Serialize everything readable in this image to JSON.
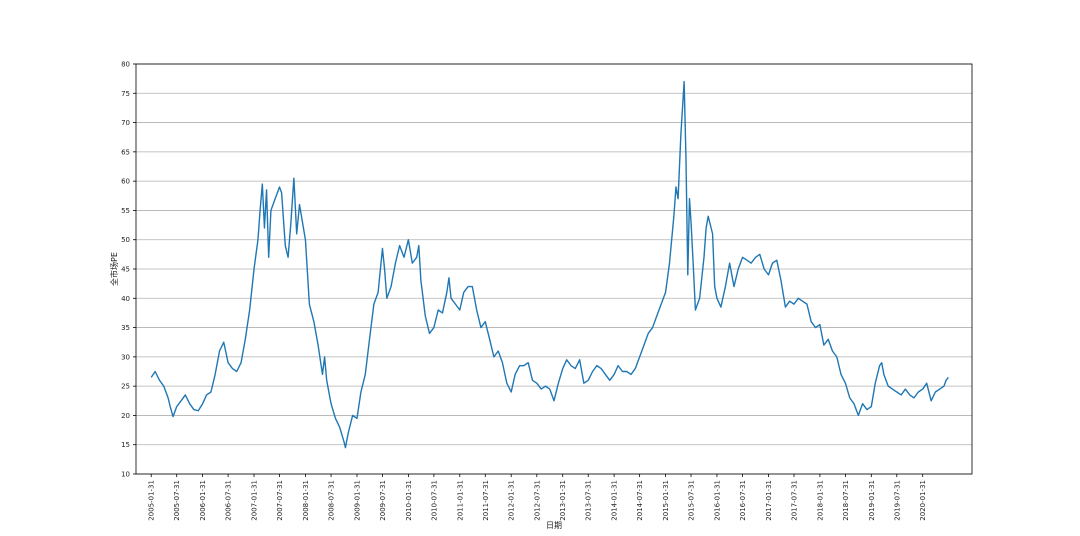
{
  "chart_data": {
    "type": "line",
    "title": "",
    "xlabel": "日期",
    "ylabel": "全市场PE",
    "ylim": [
      10,
      80
    ],
    "xlim": [
      "2004-10-15",
      "2021-01-15"
    ],
    "yticks": [
      10,
      15,
      20,
      25,
      30,
      35,
      40,
      45,
      50,
      55,
      60,
      65,
      70,
      75,
      80
    ],
    "xticks": [
      "2005-01-31",
      "2005-07-31",
      "2006-01-31",
      "2006-07-31",
      "2007-01-31",
      "2007-07-31",
      "2008-01-31",
      "2008-07-31",
      "2009-01-31",
      "2009-07-31",
      "2010-01-31",
      "2010-07-31",
      "2011-01-31",
      "2011-07-31",
      "2012-01-31",
      "2012-07-31",
      "2013-01-31",
      "2013-07-31",
      "2014-01-31",
      "2014-07-31",
      "2015-01-31",
      "2015-07-31",
      "2016-01-31",
      "2016-07-31",
      "2017-01-31",
      "2017-07-31",
      "2018-01-31",
      "2018-07-31",
      "2019-01-31",
      "2019-07-31",
      "2020-01-31"
    ],
    "grid": "horizontal",
    "line_color": "#1f77b4",
    "series": [
      {
        "points": [
          [
            "2005-01-31",
            26.5
          ],
          [
            "2005-02-28",
            27.5
          ],
          [
            "2005-03-31",
            26.0
          ],
          [
            "2005-04-30",
            25.0
          ],
          [
            "2005-05-31",
            23.0
          ],
          [
            "2005-06-15",
            21.5
          ],
          [
            "2005-07-05",
            19.8
          ],
          [
            "2005-07-31",
            21.5
          ],
          [
            "2005-08-31",
            22.5
          ],
          [
            "2005-09-30",
            23.5
          ],
          [
            "2005-10-31",
            22.0
          ],
          [
            "2005-11-30",
            21.0
          ],
          [
            "2005-12-31",
            20.8
          ],
          [
            "2006-01-31",
            22.0
          ],
          [
            "2006-02-28",
            23.5
          ],
          [
            "2006-03-31",
            24.0
          ],
          [
            "2006-04-30",
            27.0
          ],
          [
            "2006-05-31",
            31.0
          ],
          [
            "2006-06-30",
            32.5
          ],
          [
            "2006-07-31",
            29.0
          ],
          [
            "2006-08-31",
            28.0
          ],
          [
            "2006-09-30",
            27.5
          ],
          [
            "2006-10-31",
            29.0
          ],
          [
            "2006-11-30",
            33.0
          ],
          [
            "2006-12-31",
            38.0
          ],
          [
            "2007-01-31",
            45.0
          ],
          [
            "2007-02-28",
            50.0
          ],
          [
            "2007-03-15",
            55.0
          ],
          [
            "2007-03-31",
            59.5
          ],
          [
            "2007-04-15",
            52.0
          ],
          [
            "2007-04-30",
            58.5
          ],
          [
            "2007-05-15",
            47.0
          ],
          [
            "2007-05-31",
            55.0
          ],
          [
            "2007-06-30",
            57.0
          ],
          [
            "2007-07-31",
            59.0
          ],
          [
            "2007-08-15",
            58.0
          ],
          [
            "2007-09-10",
            49.0
          ],
          [
            "2007-09-30",
            47.0
          ],
          [
            "2007-10-20",
            53.0
          ],
          [
            "2007-11-10",
            60.5
          ],
          [
            "2007-11-30",
            51.0
          ],
          [
            "2007-12-20",
            56.0
          ],
          [
            "2008-01-31",
            50.0
          ],
          [
            "2008-02-28",
            39.0
          ],
          [
            "2008-03-31",
            36.0
          ],
          [
            "2008-04-30",
            32.0
          ],
          [
            "2008-05-31",
            27.0
          ],
          [
            "2008-06-15",
            30.0
          ],
          [
            "2008-06-30",
            26.0
          ],
          [
            "2008-07-31",
            22.0
          ],
          [
            "2008-08-31",
            19.5
          ],
          [
            "2008-09-30",
            18.0
          ],
          [
            "2008-10-31",
            15.5
          ],
          [
            "2008-11-10",
            14.5
          ],
          [
            "2008-11-30",
            17.0
          ],
          [
            "2008-12-31",
            20.0
          ],
          [
            "2009-01-31",
            19.5
          ],
          [
            "2009-02-28",
            24.0
          ],
          [
            "2009-03-31",
            27.0
          ],
          [
            "2009-04-30",
            33.0
          ],
          [
            "2009-05-31",
            39.0
          ],
          [
            "2009-06-30",
            41.0
          ],
          [
            "2009-07-31",
            48.5
          ],
          [
            "2009-08-15",
            45.0
          ],
          [
            "2009-08-31",
            40.0
          ],
          [
            "2009-09-30",
            42.0
          ],
          [
            "2009-10-31",
            46.0
          ],
          [
            "2009-11-30",
            49.0
          ],
          [
            "2009-12-31",
            47.0
          ],
          [
            "2010-01-31",
            50.0
          ],
          [
            "2010-02-28",
            46.0
          ],
          [
            "2010-03-31",
            47.0
          ],
          [
            "2010-04-15",
            49.0
          ],
          [
            "2010-04-30",
            43.0
          ],
          [
            "2010-05-31",
            37.0
          ],
          [
            "2010-06-30",
            34.0
          ],
          [
            "2010-07-31",
            35.0
          ],
          [
            "2010-08-31",
            38.0
          ],
          [
            "2010-09-30",
            37.5
          ],
          [
            "2010-10-31",
            41.0
          ],
          [
            "2010-11-15",
            43.5
          ],
          [
            "2010-11-30",
            40.0
          ],
          [
            "2010-12-31",
            39.0
          ],
          [
            "2011-01-31",
            38.0
          ],
          [
            "2011-02-28",
            41.0
          ],
          [
            "2011-03-31",
            42.0
          ],
          [
            "2011-04-30",
            42.0
          ],
          [
            "2011-05-31",
            38.0
          ],
          [
            "2011-06-30",
            35.0
          ],
          [
            "2011-07-31",
            36.0
          ],
          [
            "2011-08-31",
            33.0
          ],
          [
            "2011-09-30",
            30.0
          ],
          [
            "2011-10-31",
            31.0
          ],
          [
            "2011-11-30",
            29.0
          ],
          [
            "2011-12-31",
            25.5
          ],
          [
            "2012-01-31",
            24.0
          ],
          [
            "2012-02-28",
            27.0
          ],
          [
            "2012-03-31",
            28.5
          ],
          [
            "2012-04-30",
            28.5
          ],
          [
            "2012-05-31",
            29.0
          ],
          [
            "2012-06-30",
            26.0
          ],
          [
            "2012-07-31",
            25.5
          ],
          [
            "2012-08-31",
            24.5
          ],
          [
            "2012-09-30",
            25.0
          ],
          [
            "2012-10-31",
            24.5
          ],
          [
            "2012-11-30",
            22.5
          ],
          [
            "2012-12-31",
            25.5
          ],
          [
            "2013-01-31",
            28.0
          ],
          [
            "2013-02-28",
            29.5
          ],
          [
            "2013-03-31",
            28.5
          ],
          [
            "2013-04-30",
            28.0
          ],
          [
            "2013-05-31",
            29.5
          ],
          [
            "2013-06-30",
            25.5
          ],
          [
            "2013-07-31",
            26.0
          ],
          [
            "2013-08-31",
            27.5
          ],
          [
            "2013-09-30",
            28.5
          ],
          [
            "2013-10-31",
            28.0
          ],
          [
            "2013-11-30",
            27.0
          ],
          [
            "2013-12-31",
            26.0
          ],
          [
            "2014-01-31",
            27.0
          ],
          [
            "2014-02-28",
            28.5
          ],
          [
            "2014-03-31",
            27.5
          ],
          [
            "2014-04-30",
            27.5
          ],
          [
            "2014-05-31",
            27.0
          ],
          [
            "2014-06-30",
            28.0
          ],
          [
            "2014-07-31",
            30.0
          ],
          [
            "2014-08-31",
            32.0
          ],
          [
            "2014-09-30",
            34.0
          ],
          [
            "2014-10-31",
            35.0
          ],
          [
            "2014-11-30",
            37.0
          ],
          [
            "2014-12-31",
            39.0
          ],
          [
            "2015-01-31",
            41.0
          ],
          [
            "2015-02-28",
            46.0
          ],
          [
            "2015-03-31",
            54.0
          ],
          [
            "2015-04-15",
            59.0
          ],
          [
            "2015-04-30",
            57.0
          ],
          [
            "2015-05-20",
            68.0
          ],
          [
            "2015-06-12",
            77.0
          ],
          [
            "2015-06-25",
            64.0
          ],
          [
            "2015-07-08",
            44.0
          ],
          [
            "2015-07-20",
            57.0
          ],
          [
            "2015-07-31",
            53.0
          ],
          [
            "2015-08-15",
            46.0
          ],
          [
            "2015-08-31",
            38.0
          ],
          [
            "2015-09-30",
            40.0
          ],
          [
            "2015-10-31",
            47.0
          ],
          [
            "2015-11-15",
            52.0
          ],
          [
            "2015-11-30",
            54.0
          ],
          [
            "2015-12-31",
            51.0
          ],
          [
            "2016-01-15",
            42.0
          ],
          [
            "2016-01-31",
            40.0
          ],
          [
            "2016-02-28",
            38.5
          ],
          [
            "2016-03-31",
            42.0
          ],
          [
            "2016-04-30",
            46.0
          ],
          [
            "2016-05-31",
            42.0
          ],
          [
            "2016-06-30",
            45.0
          ],
          [
            "2016-07-31",
            47.0
          ],
          [
            "2016-08-31",
            46.5
          ],
          [
            "2016-09-30",
            46.0
          ],
          [
            "2016-10-31",
            47.0
          ],
          [
            "2016-11-30",
            47.5
          ],
          [
            "2016-12-31",
            45.0
          ],
          [
            "2017-01-31",
            44.0
          ],
          [
            "2017-02-28",
            46.0
          ],
          [
            "2017-03-31",
            46.5
          ],
          [
            "2017-04-30",
            43.0
          ],
          [
            "2017-05-31",
            38.5
          ],
          [
            "2017-06-30",
            39.5
          ],
          [
            "2017-07-31",
            39.0
          ],
          [
            "2017-08-31",
            40.0
          ],
          [
            "2017-09-30",
            39.5
          ],
          [
            "2017-10-31",
            39.0
          ],
          [
            "2017-11-30",
            36.0
          ],
          [
            "2017-12-31",
            35.0
          ],
          [
            "2018-01-31",
            35.5
          ],
          [
            "2018-02-28",
            32.0
          ],
          [
            "2018-03-31",
            33.0
          ],
          [
            "2018-04-30",
            31.0
          ],
          [
            "2018-05-31",
            30.0
          ],
          [
            "2018-06-30",
            27.0
          ],
          [
            "2018-07-31",
            25.5
          ],
          [
            "2018-08-31",
            23.0
          ],
          [
            "2018-09-30",
            22.0
          ],
          [
            "2018-10-31",
            20.0
          ],
          [
            "2018-11-30",
            22.0
          ],
          [
            "2018-12-31",
            21.0
          ],
          [
            "2019-01-31",
            21.5
          ],
          [
            "2019-02-28",
            25.5
          ],
          [
            "2019-03-31",
            28.5
          ],
          [
            "2019-04-15",
            29.0
          ],
          [
            "2019-04-30",
            27.0
          ],
          [
            "2019-05-31",
            25.0
          ],
          [
            "2019-06-30",
            24.5
          ],
          [
            "2019-07-31",
            24.0
          ],
          [
            "2019-08-31",
            23.5
          ],
          [
            "2019-09-30",
            24.5
          ],
          [
            "2019-10-31",
            23.5
          ],
          [
            "2019-11-30",
            23.0
          ],
          [
            "2019-12-31",
            24.0
          ],
          [
            "2020-01-31",
            24.5
          ],
          [
            "2020-02-28",
            25.5
          ],
          [
            "2020-03-31",
            22.5
          ],
          [
            "2020-04-30",
            24.0
          ],
          [
            "2020-05-31",
            24.5
          ],
          [
            "2020-06-30",
            25.0
          ],
          [
            "2020-07-15",
            26.0
          ],
          [
            "2020-07-31",
            26.5
          ]
        ]
      }
    ]
  }
}
